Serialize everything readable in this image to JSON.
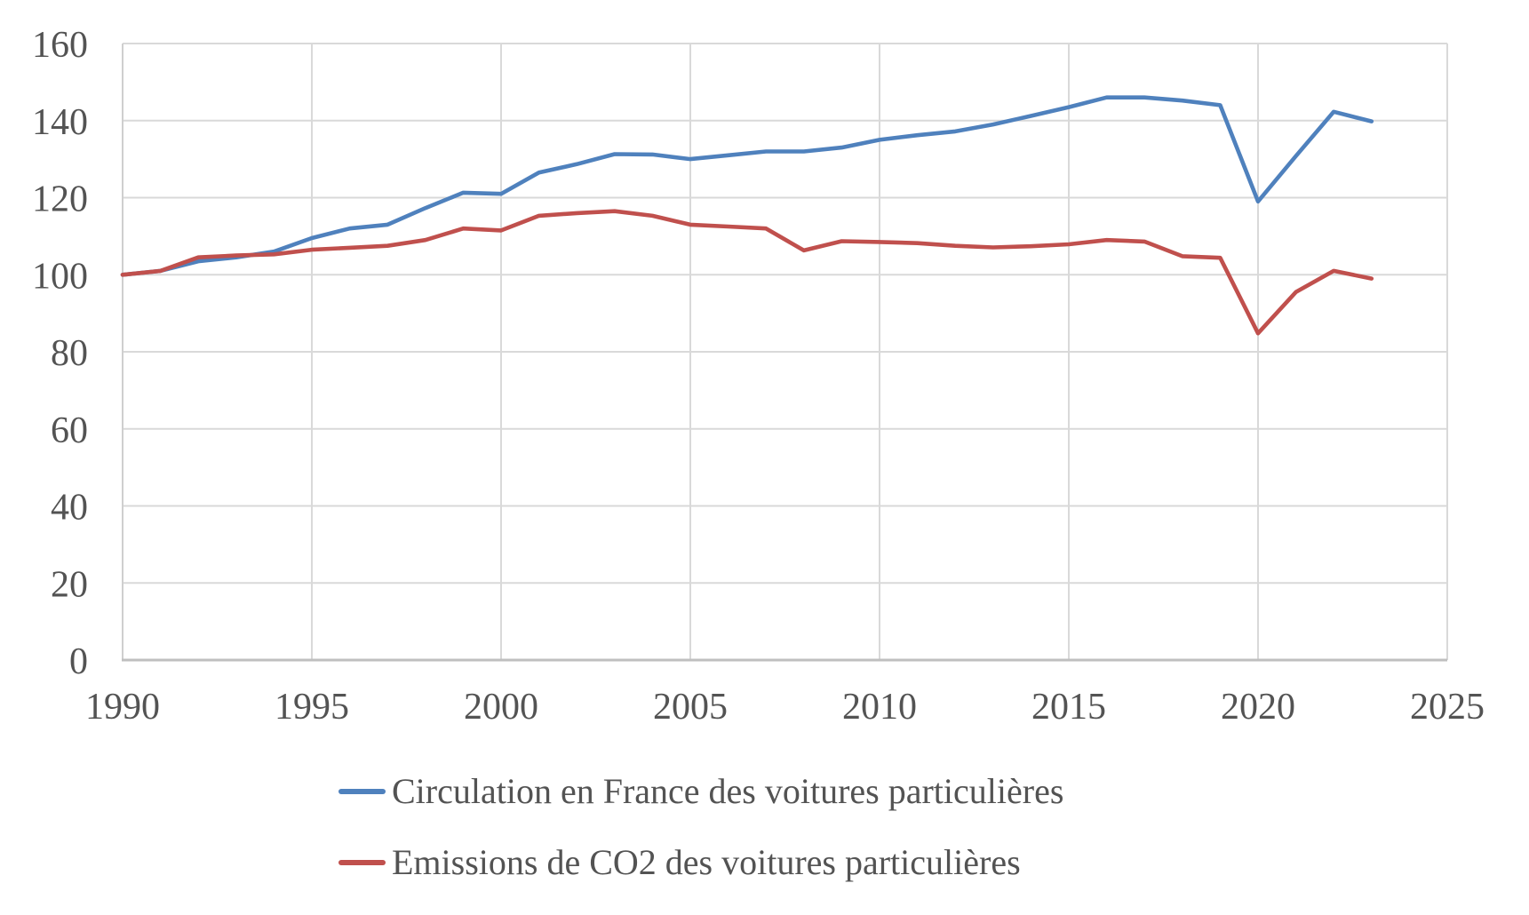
{
  "chart_data": {
    "type": "line",
    "x": [
      1990,
      1991,
      1992,
      1993,
      1994,
      1995,
      1996,
      1997,
      1998,
      1999,
      2000,
      2001,
      2002,
      2003,
      2004,
      2005,
      2006,
      2007,
      2008,
      2009,
      2010,
      2011,
      2012,
      2013,
      2014,
      2015,
      2016,
      2017,
      2018,
      2019,
      2020,
      2021,
      2022,
      2023
    ],
    "series": [
      {
        "name": "Circulation en France des voitures particulières",
        "color": "#4F81BD",
        "values": [
          100,
          101,
          103.5,
          104.5,
          106,
          109.5,
          112,
          113,
          117.3,
          121.3,
          121,
          126.5,
          128.7,
          131.3,
          131.2,
          130,
          131,
          132,
          132,
          133,
          135,
          136.2,
          137.2,
          139,
          141.2,
          143.5,
          146,
          146,
          145.2,
          144,
          119,
          130.8,
          142.3,
          139.8
        ]
      },
      {
        "name": "Emissions de CO2 des voitures particulières",
        "color": "#C0504D",
        "values": [
          100,
          101,
          104.5,
          105,
          105.3,
          106.5,
          107,
          107.5,
          109,
          112,
          111.5,
          115.3,
          116,
          116.5,
          115.3,
          113,
          112.5,
          112,
          106.3,
          108.7,
          108.5,
          108.2,
          107.5,
          107.1,
          107.4,
          107.9,
          109,
          108.6,
          104.8,
          104.4,
          84.8,
          95.5,
          101,
          99
        ]
      }
    ],
    "title": "",
    "xlabel": "",
    "ylabel": "",
    "xlim": [
      1990,
      2025
    ],
    "ylim": [
      0,
      160
    ],
    "x_ticks": [
      1990,
      1995,
      2000,
      2005,
      2010,
      2015,
      2020,
      2025
    ],
    "y_ticks": [
      0,
      20,
      40,
      60,
      80,
      100,
      120,
      140,
      160
    ],
    "grid": true,
    "legend_position": "bottom"
  },
  "style": {
    "gridline_color": "#D9D9D9",
    "axis_line_color": "#BFBFBF",
    "tick_label_color": "#535353"
  }
}
